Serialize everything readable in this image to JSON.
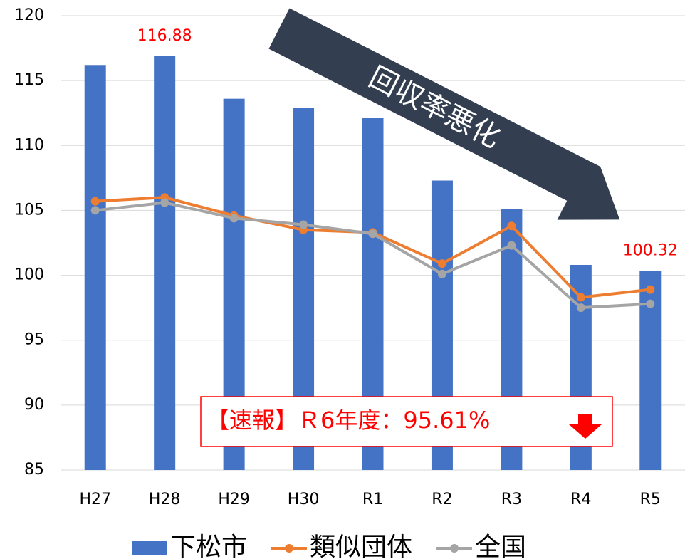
{
  "chart_data": {
    "type": "bar",
    "categories": [
      "H27",
      "H28",
      "H29",
      "H30",
      "R1",
      "R2",
      "R3",
      "R4",
      "R5"
    ],
    "series": [
      {
        "name": "下松市",
        "type": "bar",
        "color": "#4472c4",
        "values": [
          116.2,
          116.88,
          113.6,
          112.9,
          112.1,
          107.3,
          105.1,
          100.8,
          100.32
        ],
        "value_labels": [
          null,
          "116.88",
          null,
          null,
          null,
          null,
          null,
          null,
          "100.32"
        ]
      },
      {
        "name": "類似団体",
        "type": "line",
        "color": "#ed7d31",
        "values": [
          105.7,
          106.0,
          104.6,
          103.5,
          103.3,
          100.9,
          103.8,
          98.3,
          98.9
        ]
      },
      {
        "name": "全国",
        "type": "line",
        "color": "#a5a5a5",
        "values": [
          105.0,
          105.6,
          104.4,
          103.9,
          103.2,
          100.1,
          102.3,
          97.5,
          97.8
        ]
      }
    ],
    "ylim": [
      85,
      120
    ],
    "yticks": [
      85,
      90,
      95,
      100,
      105,
      110,
      115,
      120
    ],
    "grid": true,
    "value_label_color": "#ff0000",
    "annotations": [
      "回収率悪化",
      "【速報】Ｒ6年度：95.61%"
    ],
    "legend": "bottom"
  }
}
